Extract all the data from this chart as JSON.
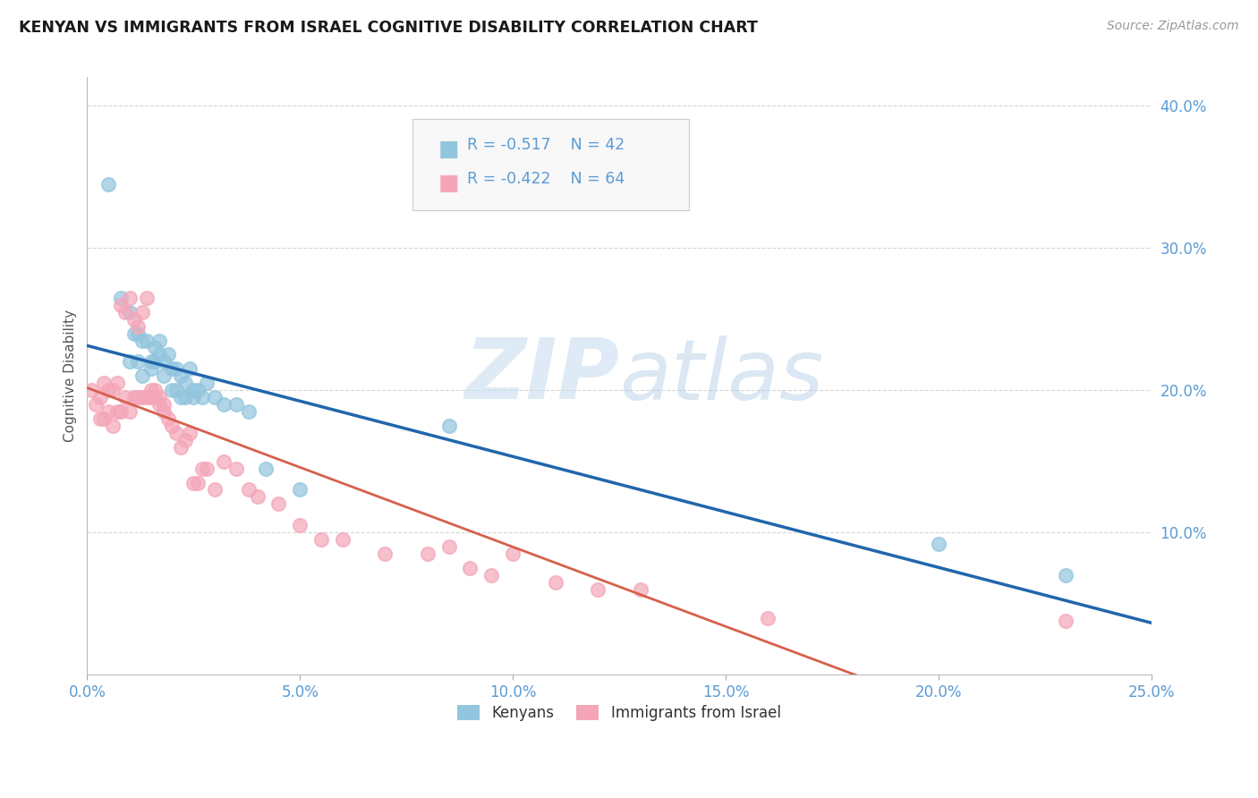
{
  "title": "KENYAN VS IMMIGRANTS FROM ISRAEL COGNITIVE DISABILITY CORRELATION CHART",
  "source": "Source: ZipAtlas.com",
  "ylabel": "Cognitive Disability",
  "legend_label1": "Kenyans",
  "legend_label2": "Immigrants from Israel",
  "legend_r1": "R = -0.517",
  "legend_n1": "N = 42",
  "legend_r2": "R = -0.422",
  "legend_n2": "N = 64",
  "blue_color": "#92c5de",
  "pink_color": "#f4a6b8",
  "blue_line_color": "#2166ac",
  "pink_line_color": "#d6604d",
  "blue_scatter": {
    "x": [
      0.005,
      0.008,
      0.01,
      0.01,
      0.011,
      0.012,
      0.012,
      0.013,
      0.013,
      0.014,
      0.015,
      0.015,
      0.016,
      0.016,
      0.017,
      0.017,
      0.018,
      0.018,
      0.019,
      0.02,
      0.02,
      0.021,
      0.021,
      0.022,
      0.022,
      0.023,
      0.023,
      0.024,
      0.025,
      0.025,
      0.026,
      0.027,
      0.028,
      0.03,
      0.032,
      0.035,
      0.038,
      0.042,
      0.05,
      0.085,
      0.2,
      0.23
    ],
    "y": [
      0.345,
      0.265,
      0.255,
      0.22,
      0.24,
      0.22,
      0.24,
      0.21,
      0.235,
      0.235,
      0.22,
      0.215,
      0.23,
      0.22,
      0.225,
      0.235,
      0.21,
      0.22,
      0.225,
      0.215,
      0.2,
      0.2,
      0.215,
      0.21,
      0.195,
      0.205,
      0.195,
      0.215,
      0.2,
      0.195,
      0.2,
      0.195,
      0.205,
      0.195,
      0.19,
      0.19,
      0.185,
      0.145,
      0.13,
      0.175,
      0.092,
      0.07
    ]
  },
  "pink_scatter": {
    "x": [
      0.001,
      0.002,
      0.003,
      0.003,
      0.004,
      0.004,
      0.005,
      0.005,
      0.006,
      0.006,
      0.007,
      0.007,
      0.008,
      0.008,
      0.009,
      0.009,
      0.01,
      0.01,
      0.011,
      0.011,
      0.012,
      0.012,
      0.013,
      0.013,
      0.014,
      0.014,
      0.015,
      0.015,
      0.016,
      0.016,
      0.017,
      0.017,
      0.018,
      0.018,
      0.019,
      0.02,
      0.021,
      0.022,
      0.023,
      0.024,
      0.025,
      0.026,
      0.027,
      0.028,
      0.03,
      0.032,
      0.035,
      0.038,
      0.04,
      0.045,
      0.05,
      0.055,
      0.06,
      0.07,
      0.08,
      0.085,
      0.09,
      0.095,
      0.1,
      0.11,
      0.12,
      0.13,
      0.16,
      0.23
    ],
    "y": [
      0.2,
      0.19,
      0.195,
      0.18,
      0.205,
      0.18,
      0.2,
      0.185,
      0.2,
      0.175,
      0.205,
      0.185,
      0.26,
      0.185,
      0.255,
      0.195,
      0.265,
      0.185,
      0.25,
      0.195,
      0.245,
      0.195,
      0.255,
      0.195,
      0.265,
      0.195,
      0.2,
      0.195,
      0.2,
      0.195,
      0.19,
      0.195,
      0.19,
      0.185,
      0.18,
      0.175,
      0.17,
      0.16,
      0.165,
      0.17,
      0.135,
      0.135,
      0.145,
      0.145,
      0.13,
      0.15,
      0.145,
      0.13,
      0.125,
      0.12,
      0.105,
      0.095,
      0.095,
      0.085,
      0.085,
      0.09,
      0.075,
      0.07,
      0.085,
      0.065,
      0.06,
      0.06,
      0.04,
      0.038
    ]
  },
  "xmin": 0.0,
  "xmax": 0.25,
  "ymin": 0.0,
  "ymax": 0.42,
  "watermark_zip": "ZIP",
  "watermark_atlas": "atlas",
  "background_color": "#ffffff"
}
